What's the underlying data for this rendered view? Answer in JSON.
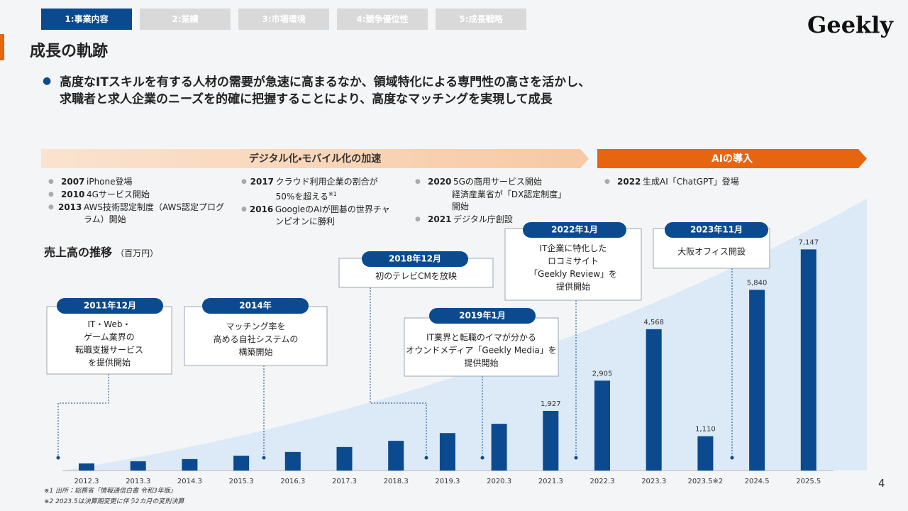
{
  "header": {
    "tabs": [
      "1:事業内容",
      "2:業績",
      "3:市場環境",
      "4:競争優位性",
      "5:成長戦略"
    ],
    "active_tab": 0,
    "logo": "Geekly"
  },
  "title": "成長の軌跡",
  "bullet": [
    "高度なITスキルを有する人材の需要が急速に高まるなか、領域特化による専門性の高さを活かし、",
    "求職者と求人企業のニーズを的確に把握することにより、高度なマッチングを実現して成長"
  ],
  "phases": [
    "デジタル化・モバイル化の加速",
    "AIの導入"
  ],
  "events": [
    [
      {
        "year": "2007",
        "text": "iPhone登場"
      },
      {
        "year": "2010",
        "text": "4Gサービス開始"
      },
      {
        "year": "2013",
        "text": "AWS技術認定制度（AWS認定プログラム）開始"
      }
    ],
    [
      {
        "year": "2017",
        "text": "クラウド利用企業の割合が50%を超える",
        "note": "※1"
      },
      {
        "year": "2016",
        "text": "GoogleのAIが囲碁の世界チャンピオンに勝利"
      }
    ],
    [
      {
        "year": "2020",
        "text": "5Gの商用サービス開始"
      },
      {
        "year": null,
        "text": "経済産業省が「DX認定制度」開始"
      },
      {
        "year": "2021",
        "text": "デジタル庁創設"
      }
    ],
    [
      {
        "year": "2022",
        "text": "生成AI「ChatGPT」登場"
      }
    ]
  ],
  "milestones": [
    {
      "date": "2011年12月",
      "text": [
        "IT・Web・",
        "ゲーム業界の",
        "転職支援サービス",
        "を提供開始"
      ]
    },
    {
      "date": "2014年",
      "text": [
        "マッチング率を",
        "高める自社システムの",
        "構築開始"
      ]
    },
    {
      "date": "2018年12月",
      "text": [
        "初のテレビCMを放映"
      ]
    },
    {
      "date": "2019年1月",
      "text": [
        "IT業界と転職のイマが分かる",
        "オウンドメディア「Geekly Media」を",
        "提供開始"
      ]
    },
    {
      "date": "2022年1月",
      "text": [
        "IT企業に特化した",
        "ロコミサイト",
        "「Geekly Review」を",
        "提供開始"
      ]
    },
    {
      "date": "2023年11月",
      "text": [
        "大阪オフィス開設"
      ]
    }
  ],
  "chart_data": {
    "type": "bar",
    "title": "売上高の推移",
    "unit": "（百万円）",
    "categories": [
      "2012.3",
      "2013.3",
      "2014.3",
      "2015.3",
      "2016.3",
      "2017.3",
      "2018.3",
      "2019.3",
      "2020.3",
      "2021.3",
      "2022.3",
      "2023.3",
      "2023.5※2",
      "2024.5",
      "2025.5"
    ],
    "values": [
      230,
      300,
      370,
      480,
      600,
      760,
      960,
      1210,
      1510,
      1927,
      2905,
      4568,
      1110,
      5840,
      7147
    ],
    "value_labels": [
      null,
      null,
      null,
      null,
      null,
      null,
      null,
      null,
      null,
      "1,927",
      "2,905",
      "4,568",
      "1,110",
      "5,840",
      "7,147"
    ],
    "color": "#0b4a8f",
    "ylim": [
      0,
      7500
    ]
  },
  "footnotes": [
    "※1 出所：総務省「情報通信白書 令和3年版」",
    "※2 2023.5は決算期変更に伴う2カ月の変則決算"
  ],
  "page_number": 4
}
